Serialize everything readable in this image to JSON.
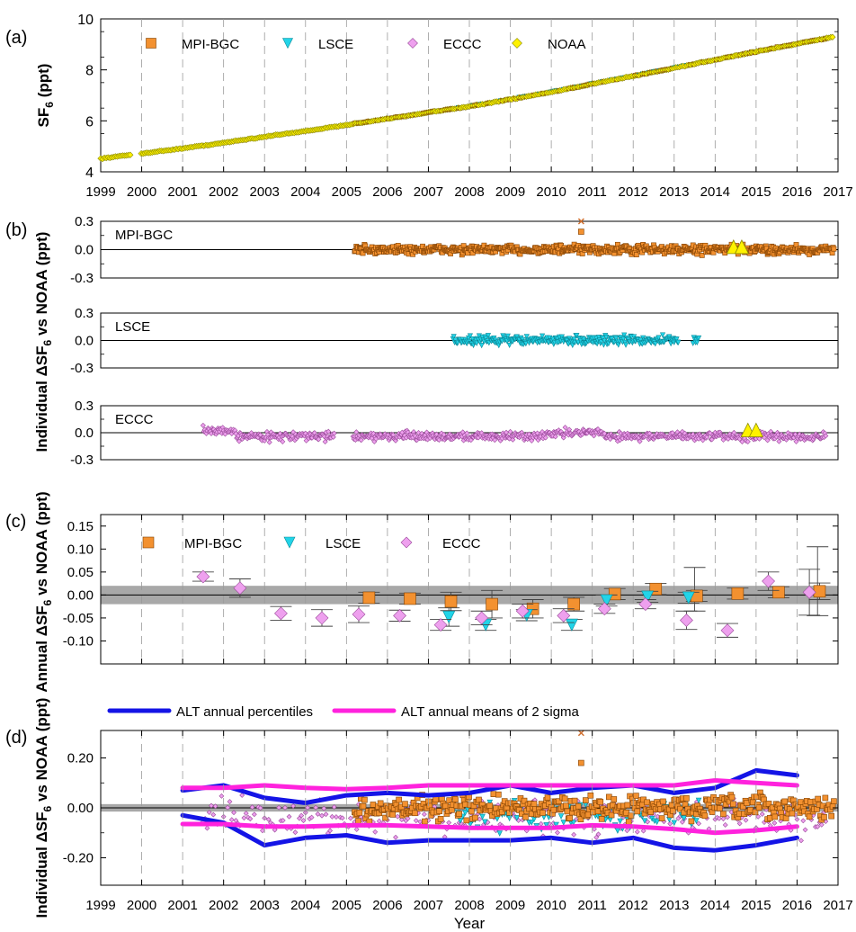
{
  "figure": {
    "panel_labels": [
      "(a)",
      "(b)",
      "(c)",
      "(d)"
    ],
    "xlabel_bottom": "Year"
  },
  "colors": {
    "mpi": "#F39130",
    "lsce": "#22D4E8",
    "eccc": "#EEA0EE",
    "noaa": "#FFF200",
    "alt_percentiles": "#1414E6",
    "alt_2sigma": "#FF22DD",
    "band": "#A8A8A8",
    "outlier": "#D07030"
  },
  "chart_data": [
    {
      "id": "a",
      "type": "scatter",
      "ylabel": "SF6 (ppt)",
      "ylabel_main": "SF",
      "ylabel_sub": "6",
      "ylabel_tail": " (ppt)",
      "xlim": [
        1999,
        2017
      ],
      "ylim": [
        4,
        10
      ],
      "yticks": [
        4,
        6,
        8,
        10
      ],
      "xticks": [
        "1999",
        "2000",
        "2001",
        "2002",
        "2003",
        "2004",
        "2005",
        "2006",
        "2007",
        "2008",
        "2009",
        "2010",
        "2011",
        "2012",
        "2013",
        "2014",
        "2015",
        "2016",
        "2017"
      ],
      "legend": [
        "MPI-BGC",
        "LSCE",
        "ECCC",
        "NOAA"
      ],
      "legend_position": "top-left",
      "series_trend": {
        "x": [
          1999.0,
          2000.0,
          2001.0,
          2002.0,
          2003.0,
          2004.0,
          2005.0,
          2006.0,
          2007.0,
          2008.0,
          2009.0,
          2010.0,
          2011.0,
          2012.0,
          2013.0,
          2014.0,
          2015.0,
          2016.0,
          2016.9
        ],
        "y": [
          4.52,
          4.72,
          4.92,
          5.14,
          5.38,
          5.6,
          5.84,
          6.08,
          6.33,
          6.57,
          6.84,
          7.13,
          7.45,
          7.76,
          8.07,
          8.4,
          8.72,
          9.02,
          9.3
        ]
      },
      "gaps": [
        [
          1999.75,
          1999.98
        ]
      ]
    },
    {
      "id": "b",
      "type": "scatter",
      "ylabel": "Individual ΔSF6 vs NOAA (ppt)",
      "ylabel_prefix": "Individual ΔSF",
      "ylabel_sub": "6",
      "ylabel_tail": " vs NOAA (ppt)",
      "xlim": [
        1999,
        2017
      ],
      "subpanels": [
        {
          "name": "MPI-BGC",
          "ylim": [
            -0.3,
            0.3
          ],
          "yticks": [
            "0.3",
            "0.0",
            "-0.3"
          ],
          "x_range": [
            2005.2,
            2016.9
          ],
          "spread": 0.07,
          "mean": 0.0,
          "outliers": [
            {
              "x": 2010.73,
              "y": 0.3,
              "marker": "x"
            },
            {
              "x": 2010.73,
              "y": 0.19,
              "marker": "square"
            }
          ],
          "noaa_marks": [
            {
              "x": 2014.45,
              "y": 0.02
            },
            {
              "x": 2014.65,
              "y": 0.02
            }
          ]
        },
        {
          "name": "LSCE",
          "ylim": [
            -0.3,
            0.3
          ],
          "yticks": [
            "0.3",
            "0.0",
            "-0.3"
          ],
          "x_range": [
            2007.6,
            2013.6
          ],
          "spread": 0.07,
          "mean": 0.0,
          "outliers": [],
          "noaa_marks": []
        },
        {
          "name": "ECCC",
          "ylim": [
            -0.3,
            0.3
          ],
          "yticks": [
            "0.3",
            "0.0",
            "-0.3"
          ],
          "x_range": [
            2001.5,
            2016.7
          ],
          "spread": 0.07,
          "mean": -0.04,
          "outliers": [],
          "noaa_marks": [
            {
              "x": 2014.8,
              "y": 0.02
            },
            {
              "x": 2015.0,
              "y": 0.02
            }
          ]
        }
      ]
    },
    {
      "id": "c",
      "type": "scatter",
      "ylabel": "Annual ΔSF6 vs NOAA (ppt)",
      "ylabel_prefix": "Annual ΔSF",
      "ylabel_sub": "6",
      "ylabel_tail": " vs NOAA (ppt)",
      "xlim": [
        1999,
        2017
      ],
      "ylim": [
        -0.15,
        0.175
      ],
      "yticks": [
        "0.15",
        "0.10",
        "0.05",
        "0.00",
        "-0.05",
        "-0.10"
      ],
      "band": [
        -0.02,
        0.02
      ],
      "legend": [
        "MPI-BGC",
        "LSCE",
        "ECCC"
      ],
      "legend_position": "top-left",
      "series": [
        {
          "name": "MPI-BGC",
          "points": [
            {
              "x": 2005.55,
              "y": -0.006,
              "err": 0.012
            },
            {
              "x": 2006.55,
              "y": -0.008,
              "err": 0.012
            },
            {
              "x": 2007.55,
              "y": -0.014,
              "err": 0.02
            },
            {
              "x": 2008.55,
              "y": -0.02,
              "err": 0.03
            },
            {
              "x": 2009.55,
              "y": -0.03,
              "err": 0.02
            },
            {
              "x": 2010.55,
              "y": -0.02,
              "err": 0.015
            },
            {
              "x": 2011.55,
              "y": 0.002,
              "err": 0.012
            },
            {
              "x": 2012.55,
              "y": 0.013,
              "err": 0.012
            },
            {
              "x": 2013.55,
              "y": -0.002,
              "err": 0.012
            },
            {
              "x": 2014.55,
              "y": 0.003,
              "err": 0.012
            },
            {
              "x": 2015.55,
              "y": 0.006,
              "err": 0.012
            },
            {
              "x": 2016.55,
              "y": 0.008,
              "err": 0.018
            }
          ]
        },
        {
          "name": "LSCE",
          "points": [
            {
              "x": 2007.5,
              "y": -0.048,
              "err": 0.02
            },
            {
              "x": 2008.4,
              "y": -0.065,
              "err": 0.012
            },
            {
              "x": 2009.4,
              "y": -0.044,
              "err": 0.012
            },
            {
              "x": 2010.5,
              "y": -0.065,
              "err": 0.012
            },
            {
              "x": 2011.35,
              "y": -0.012,
              "err": 0.012
            },
            {
              "x": 2012.35,
              "y": -0.004,
              "err": 0.012
            },
            {
              "x": 2013.35,
              "y": -0.006,
              "err": 0.012
            }
          ]
        },
        {
          "name": "ECCC",
          "points": [
            {
              "x": 2001.5,
              "y": 0.04,
              "err": 0.01
            },
            {
              "x": 2002.4,
              "y": 0.015,
              "err": 0.02
            },
            {
              "x": 2003.4,
              "y": -0.04,
              "err": 0.015
            },
            {
              "x": 2004.4,
              "y": -0.05,
              "err": 0.018
            },
            {
              "x": 2005.3,
              "y": -0.042,
              "err": 0.018
            },
            {
              "x": 2006.3,
              "y": -0.045,
              "err": 0.012
            },
            {
              "x": 2007.3,
              "y": -0.065,
              "err": 0.012
            },
            {
              "x": 2008.3,
              "y": -0.05,
              "err": 0.015
            },
            {
              "x": 2009.3,
              "y": -0.035,
              "err": 0.015
            },
            {
              "x": 2010.3,
              "y": -0.045,
              "err": 0.015
            },
            {
              "x": 2011.3,
              "y": -0.03,
              "err": 0.01
            },
            {
              "x": 2012.3,
              "y": -0.02,
              "err": 0.01
            },
            {
              "x": 2013.3,
              "y": -0.055,
              "err": 0.02
            },
            {
              "x": 2014.3,
              "y": -0.077,
              "err": 0.015
            },
            {
              "x": 2015.3,
              "y": 0.03,
              "err": 0.02
            },
            {
              "x": 2016.3,
              "y": 0.006,
              "err": 0.05
            }
          ]
        }
      ],
      "extra_errorbars": [
        {
          "x": 2013.5,
          "lo": -0.035,
          "hi": 0.06
        },
        {
          "x": 2016.5,
          "lo": -0.045,
          "hi": 0.105
        }
      ]
    },
    {
      "id": "d",
      "type": "line",
      "ylabel": "Individual ΔSF6 vs NOAA (ppt)",
      "ylabel_prefix": "Individual ΔSF",
      "ylabel_sub": "6",
      "ylabel_tail": " vs NOAA (ppt)",
      "xlabel": "Year",
      "xlim": [
        1999,
        2017
      ],
      "ylim": [
        -0.31,
        0.31
      ],
      "yticks": [
        "0.20",
        "0.00",
        "-0.20"
      ],
      "ytick_values": [
        0.2,
        0.0,
        -0.2
      ],
      "xticks": [
        "1999",
        "2000",
        "2001",
        "2002",
        "2003",
        "2004",
        "2005",
        "2006",
        "2007",
        "2008",
        "2009",
        "2010",
        "2011",
        "2012",
        "2013",
        "2014",
        "2015",
        "2016",
        "2017"
      ],
      "band": [
        -0.015,
        0.015
      ],
      "legend": [
        "ALT annual percentiles",
        "ALT annual means of 2 sigma"
      ],
      "legend_position": "top",
      "series": [
        {
          "name": "ALT annual percentiles",
          "x": [
            2001.0,
            2002.0,
            2003.0,
            2004.0,
            2005.0,
            2006.0,
            2007.0,
            2008.0,
            2009.0,
            2010.0,
            2011.0,
            2012.0,
            2013.0,
            2014.0,
            2015.0,
            2016.0
          ],
          "upper": [
            0.07,
            0.09,
            0.04,
            0.02,
            0.05,
            0.06,
            0.05,
            0.06,
            0.09,
            0.06,
            0.08,
            0.09,
            0.06,
            0.08,
            0.15,
            0.13
          ],
          "lower": [
            -0.03,
            -0.06,
            -0.15,
            -0.12,
            -0.11,
            -0.14,
            -0.13,
            -0.13,
            -0.13,
            -0.12,
            -0.14,
            -0.12,
            -0.16,
            -0.17,
            -0.15,
            -0.12
          ]
        },
        {
          "name": "ALT annual means of 2 sigma",
          "x": [
            2001.0,
            2002.0,
            2003.0,
            2004.0,
            2005.0,
            2006.0,
            2007.0,
            2008.0,
            2009.0,
            2010.0,
            2011.0,
            2012.0,
            2013.0,
            2014.0,
            2015.0,
            2016.0
          ],
          "upper": [
            0.08,
            0.08,
            0.09,
            0.08,
            0.075,
            0.08,
            0.09,
            0.09,
            0.09,
            0.09,
            0.09,
            0.09,
            0.09,
            0.11,
            0.1,
            0.09
          ],
          "lower": [
            -0.065,
            -0.065,
            -0.075,
            -0.075,
            -0.07,
            -0.07,
            -0.075,
            -0.08,
            -0.08,
            -0.08,
            -0.07,
            -0.075,
            -0.085,
            -0.1,
            -0.09,
            -0.075
          ]
        }
      ],
      "scatter_outliers": [
        {
          "x": 2010.73,
          "y": 0.3,
          "marker": "x"
        },
        {
          "x": 2010.73,
          "y": 0.18,
          "marker": "square"
        }
      ]
    }
  ]
}
